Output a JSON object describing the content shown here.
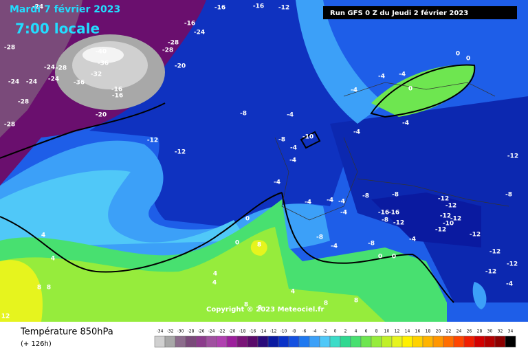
{
  "header": {
    "date": "Mardi 7 février 2023",
    "time": "7:00 locale",
    "run": "Run GFS 0 Z du Jeudi 2 février 2023"
  },
  "copyright": "Copyright © 2023 Meteociel.fr",
  "footer": {
    "title": "Température 850hPa",
    "subtitle": "(+ 126h)"
  },
  "legend": {
    "ticks": [
      -34,
      -32,
      -30,
      -28,
      -26,
      -24,
      -22,
      -20,
      -18,
      -16,
      -14,
      -12,
      -10,
      -8,
      -6,
      -4,
      -2,
      0,
      2,
      4,
      6,
      8,
      10,
      12,
      14,
      16,
      18,
      20,
      22,
      24,
      26,
      28,
      30,
      32,
      34
    ],
    "colors": [
      "#d0d0d0",
      "#a8a8a8",
      "#8c6c8c",
      "#7a4a7a",
      "#8c3c8c",
      "#a050a0",
      "#b040b0",
      "#9c1e9c",
      "#7a1478",
      "#5a0a6a",
      "#2a0a7a",
      "#0a1aa0",
      "#0a32c8",
      "#1450e0",
      "#1e78f0",
      "#3ca0f8",
      "#50c8f8",
      "#3cdcc8",
      "#30d890",
      "#48e070",
      "#6ee650",
      "#96ec3c",
      "#c0f028",
      "#e6f41e",
      "#fff000",
      "#ffd200",
      "#ffb400",
      "#ff9600",
      "#ff6e00",
      "#ff4600",
      "#f01e00",
      "#d20000",
      "#b40000",
      "#8c0000",
      "#000000"
    ]
  },
  "map_labels": [
    "-24",
    "-16",
    "-16",
    "-12",
    "-16",
    "-24",
    "-28",
    "-28",
    "-28",
    "-40",
    "-36",
    "-28",
    "-24",
    "-32",
    "-36",
    "-24",
    "-24",
    "-24",
    "-20",
    "-16",
    "-16",
    "-28",
    "-20",
    "-28",
    "-12",
    "-12",
    "-8",
    "-4",
    "-8",
    "-10",
    "-4",
    "-4",
    "-4",
    "-4",
    "-4",
    "-4",
    "0",
    "0",
    "0",
    "-4",
    "-4",
    "-12",
    "-8",
    "-8",
    "-8",
    "-4",
    "-4",
    "-4",
    "-4",
    "-16",
    "-16",
    "-8",
    "-12",
    "-12",
    "-12",
    "-12",
    "-10",
    "-12",
    "-12",
    "-12",
    "-4",
    "-8",
    "-4",
    "-8",
    "-12",
    "-12",
    "-12",
    "-4",
    "0",
    "0",
    "8",
    "0",
    "0",
    "4",
    "4",
    "4",
    "4",
    "8",
    "8",
    "4",
    "8",
    "8",
    "8",
    "8",
    "12"
  ]
}
